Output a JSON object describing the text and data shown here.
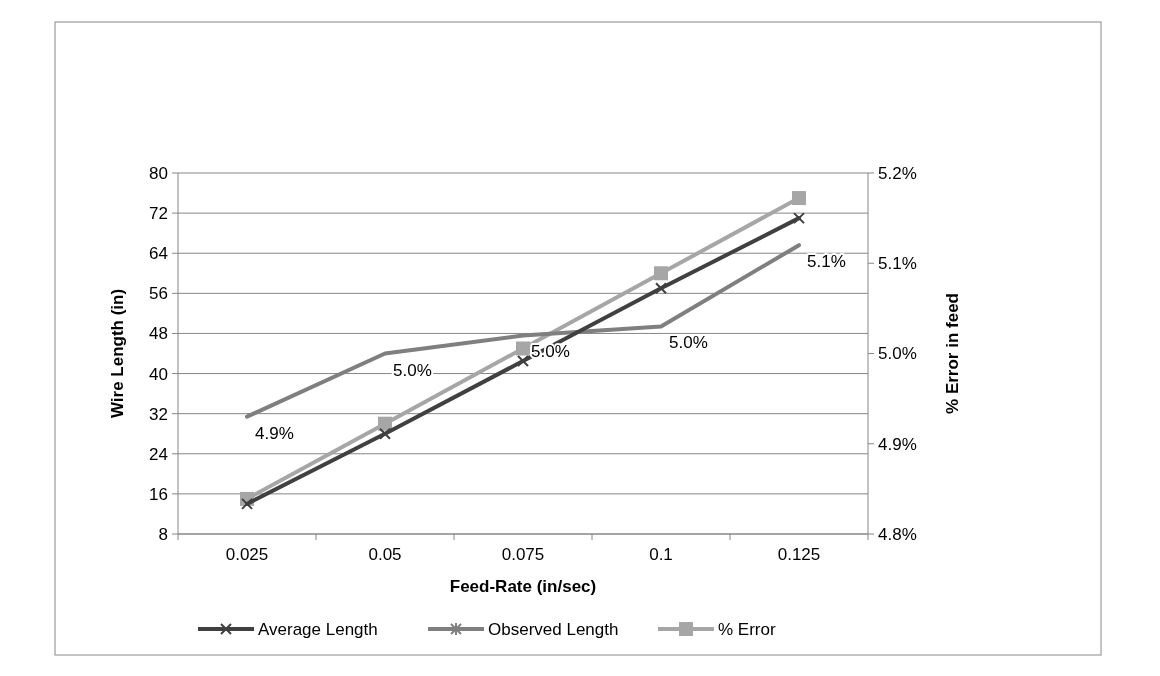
{
  "chart_data": {
    "type": "line",
    "xlabel": "Feed-Rate (in/sec)",
    "ylabel": "Wire Length (in)",
    "y2label": "% Error in feed",
    "categories": [
      "0.025",
      "0.05",
      "0.075",
      "0.1",
      "0.125"
    ],
    "series": [
      {
        "name": "Average Length",
        "color": "#404040",
        "marker": "cross",
        "values": [
          14,
          28,
          42.5,
          57,
          71
        ]
      },
      {
        "name": "Observed Length",
        "color": "#7f7f7f",
        "marker": "none",
        "axis": "y2",
        "values": [
          4.93,
          5.0,
          5.02,
          5.03,
          5.12
        ],
        "value_labels": [
          "4.9%",
          "5.0%",
          "5.0%",
          "5.0%",
          "5.1%"
        ]
      },
      {
        "name": "% Error",
        "color": "#a6a6a6",
        "marker": "square",
        "values": [
          15,
          30,
          45,
          60,
          75
        ]
      }
    ],
    "ylim": [
      8,
      80
    ],
    "yticks": [
      8,
      16,
      24,
      32,
      40,
      48,
      56,
      64,
      72,
      80
    ],
    "y2lim": [
      4.8,
      5.2
    ],
    "y2ticks": [
      {
        "value": 4.8,
        "label": "4.8%"
      },
      {
        "value": 4.9,
        "label": "4.9%"
      },
      {
        "value": 5.0,
        "label": "5.0%"
      },
      {
        "value": 5.1,
        "label": "5.1%"
      },
      {
        "value": 5.2,
        "label": "5.2%"
      }
    ],
    "grid": "y",
    "legend": "bottom"
  }
}
